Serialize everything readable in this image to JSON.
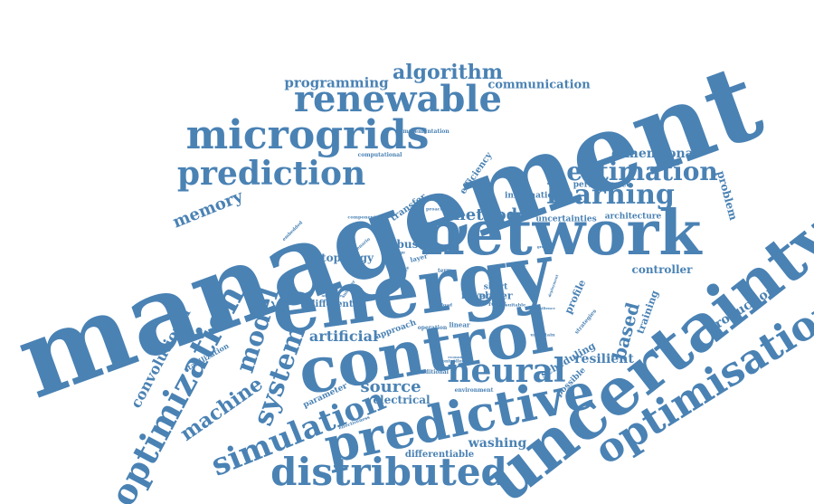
{
  "color": "#4a82b4",
  "words": [
    "management",
    "energy",
    "network",
    "control",
    "uncertainty",
    "predictive",
    "optimisation",
    "distributed",
    "optimization",
    "microgrids",
    "renewable",
    "prediction",
    "neural",
    "simulation",
    "learning",
    "estimation",
    "algorithm",
    "system",
    "model",
    "machine",
    "programming",
    "communication",
    "memory",
    "based",
    "method",
    "source",
    "artificial",
    "convolutional",
    "washing",
    "resilient",
    "dimensional",
    "topology",
    "robust",
    "production",
    "controller",
    "problem",
    "training",
    "efficiency",
    "transfer",
    "profile",
    "information",
    "architecture",
    "uncertainties",
    "performance",
    "scheduling",
    "electrical",
    "differentiable",
    "stabilization",
    "parameter",
    "novel",
    "power",
    "approach",
    "different",
    "short",
    "implementation",
    "computational",
    "proactive",
    "component",
    "embedded",
    "scenario",
    "change",
    "layer",
    "agent",
    "linear",
    "operation",
    "possible",
    "strategies",
    "result",
    "suitable",
    "environment",
    "traditional",
    "controlled",
    "effectiveness",
    "term",
    "economic",
    "load",
    "advantage",
    "summer",
    "uncertain",
    "resilience",
    "ground",
    "deployment",
    "objective",
    "renewable",
    "series",
    "equal",
    "dual",
    "future",
    "known",
    "benefits",
    "flexible",
    "spacecraft",
    "process",
    "storage",
    "wind",
    "grid",
    "heating",
    "solar",
    "hybrid",
    "power",
    "electricity",
    "paper",
    "propose"
  ]
}
